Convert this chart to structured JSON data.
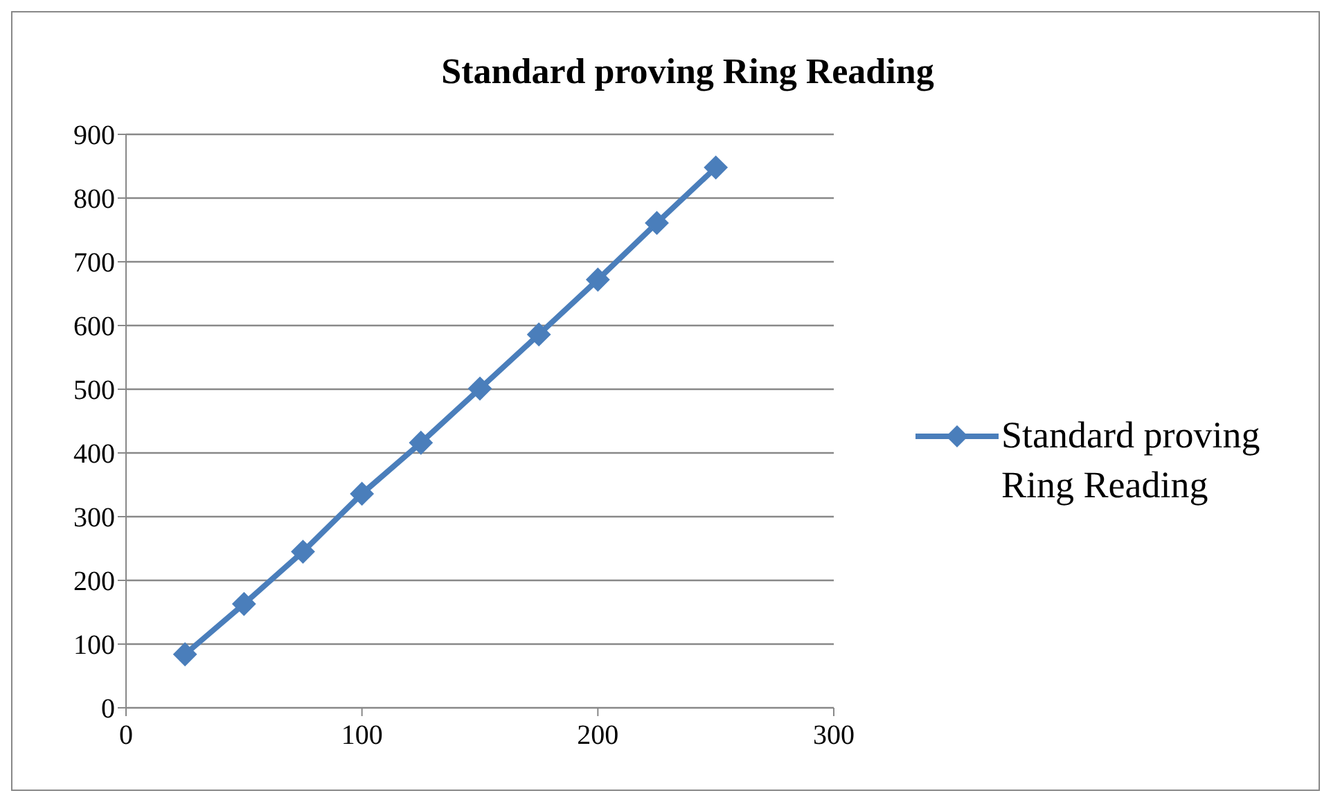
{
  "chart_data": {
    "type": "line",
    "title": "Standard proving Ring Reading",
    "x": [
      25,
      50,
      75,
      100,
      125,
      150,
      175,
      200,
      225,
      250
    ],
    "series": [
      {
        "name": "Standard proving Ring Reading",
        "color": "#4a7ebb",
        "values": [
          84,
          163,
          245,
          336,
          416,
          501,
          586,
          672,
          761,
          848
        ]
      }
    ],
    "xlim": [
      0,
      300
    ],
    "xticks": [
      0,
      100,
      200,
      300
    ],
    "ylim": [
      0,
      900
    ],
    "yticks": [
      0,
      100,
      200,
      300,
      400,
      500,
      600,
      700,
      800,
      900
    ],
    "grid": "y",
    "legend": "right",
    "marker": "diamond"
  }
}
